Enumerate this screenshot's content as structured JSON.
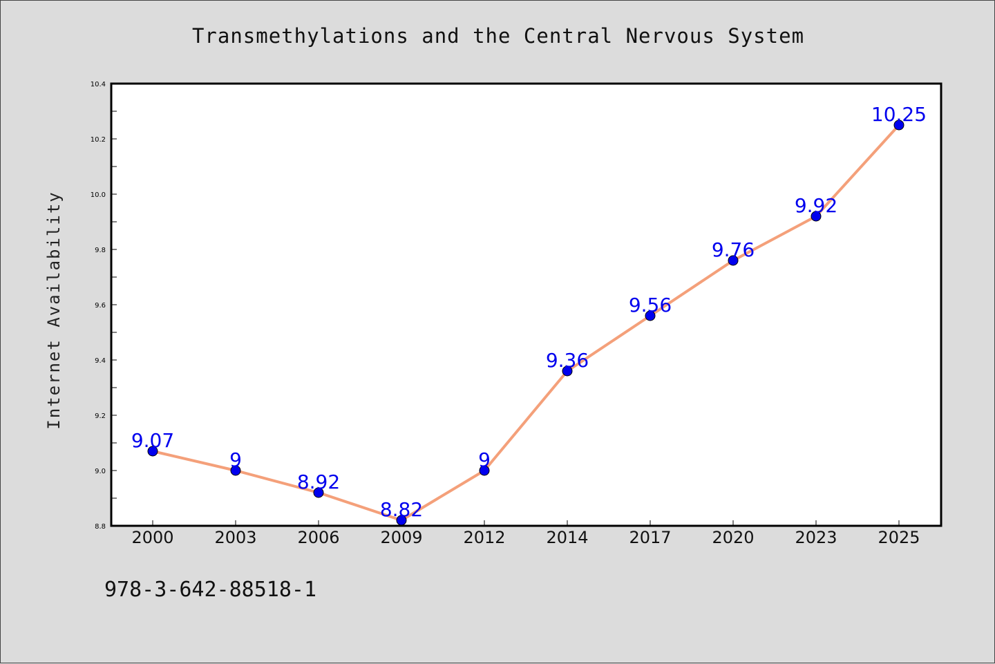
{
  "chart_data": {
    "type": "line",
    "title": "Transmethylations and the Central Nervous System",
    "xlabel": "",
    "ylabel": "Internet Availability",
    "categories": [
      "2000",
      "2003",
      "2006",
      "2009",
      "2012",
      "2014",
      "2017",
      "2020",
      "2023",
      "2025"
    ],
    "values": [
      9.07,
      9.0,
      8.92,
      8.82,
      9.0,
      9.36,
      9.56,
      9.76,
      9.92,
      10.25
    ],
    "data_labels": [
      "9.07",
      "9",
      "8.92",
      "8.82",
      "9",
      "9.36",
      "9.56",
      "9.76",
      "9.92",
      "10.25"
    ],
    "ylim": [
      8.8,
      10.4
    ],
    "yticks": [
      "8.8",
      "9.0",
      "9.2",
      "9.4",
      "9.6",
      "9.8",
      "10.0",
      "10.2",
      "10.4"
    ],
    "grid": false,
    "line_color": "#f4a07a",
    "marker_color": "#0000ee",
    "label_color": "#0000ee"
  },
  "footer": {
    "code": "978-3-642-88518-1"
  }
}
